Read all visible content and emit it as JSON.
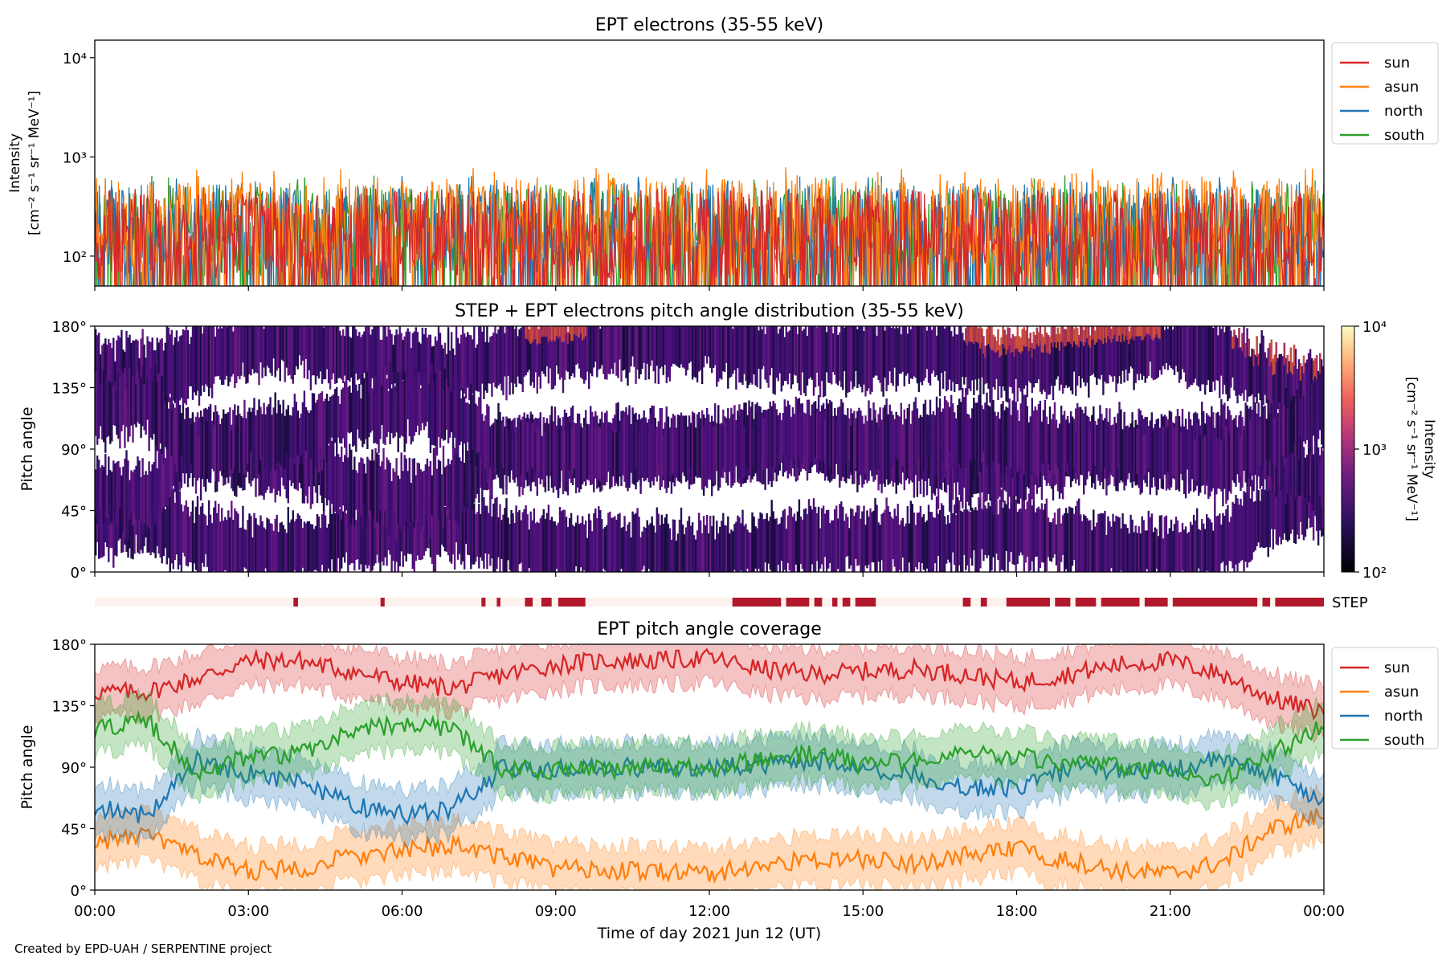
{
  "footer": {
    "credit": "Created by EPD-UAH / SERPENTINE project"
  },
  "xaxis": {
    "label": "Time of day 2021 Jun 12 (UT)",
    "ticks": [
      {
        "hour": 0,
        "label": "00:00"
      },
      {
        "hour": 3,
        "label": "03:00"
      },
      {
        "hour": 6,
        "label": "06:00"
      },
      {
        "hour": 9,
        "label": "09:00"
      },
      {
        "hour": 12,
        "label": "12:00"
      },
      {
        "hour": 15,
        "label": "15:00"
      },
      {
        "hour": 18,
        "label": "18:00"
      },
      {
        "hour": 21,
        "label": "21:00"
      },
      {
        "hour": 24,
        "label": "00:00"
      }
    ],
    "range_hours": [
      0,
      24
    ]
  },
  "chart_data": [
    {
      "type": "line",
      "title": "EPT electrons (35-55 keV)",
      "ylabel_line1": "Intensity",
      "ylabel_line2": "[cm⁻² s⁻¹ sr⁻¹ MeV⁻¹]",
      "yscale": "log",
      "ylim": [
        50,
        15000
      ],
      "yticks": [
        {
          "value": 100,
          "label": "10²"
        },
        {
          "value": 1000,
          "label": "10³"
        },
        {
          "value": 10000,
          "label": "10⁴"
        }
      ],
      "legend_position": "outside-right-top",
      "series": [
        {
          "name": "south",
          "color": "#2ca02c",
          "typical_value": 160,
          "max_value": 650
        },
        {
          "name": "north",
          "color": "#1f77b4",
          "typical_value": 170,
          "max_value": 650
        },
        {
          "name": "asun",
          "color": "#ff7f0e",
          "typical_value": 200,
          "max_value": 800
        },
        {
          "name": "sun",
          "color": "#d62728",
          "typical_value": 150,
          "max_value": 500
        }
      ],
      "legend_order": [
        "sun",
        "asun",
        "north",
        "south"
      ]
    },
    {
      "type": "heatmap",
      "title": "STEP + EPT electrons pitch angle distribution (35-55 keV)",
      "ylabel": "Pitch angle",
      "ylim": [
        0,
        180
      ],
      "yticks": [
        {
          "value": 0,
          "label": "0°"
        },
        {
          "value": 45,
          "label": "45°"
        },
        {
          "value": 90,
          "label": "90°"
        },
        {
          "value": 135,
          "label": "135°"
        },
        {
          "value": 180,
          "label": "180°"
        }
      ],
      "colorbar": {
        "label_line1": "Intensity",
        "label_line2": "[cm⁻² s⁻¹ sr⁻¹ MeV⁻¹]",
        "scale": "log",
        "range": [
          100,
          10000
        ],
        "ticks": [
          {
            "value": 100,
            "label": "10²"
          },
          {
            "value": 1000,
            "label": "10³"
          },
          {
            "value": 10000,
            "label": "10⁴"
          }
        ]
      }
    },
    {
      "type": "bar",
      "label": "STEP",
      "on_color": "#b2182b",
      "off_color": "#fdf2ee",
      "on_intervals_hours": [
        [
          3.88,
          3.97
        ],
        [
          5.58,
          5.66
        ],
        [
          7.55,
          7.63
        ],
        [
          7.85,
          7.92
        ],
        [
          8.4,
          8.55
        ],
        [
          8.72,
          8.92
        ],
        [
          9.05,
          9.58
        ],
        [
          12.45,
          13.4
        ],
        [
          13.5,
          13.95
        ],
        [
          14.05,
          14.2
        ],
        [
          14.4,
          14.5
        ],
        [
          14.6,
          14.75
        ],
        [
          14.85,
          15.25
        ],
        [
          17.3,
          17.42
        ],
        [
          16.95,
          17.1
        ],
        [
          17.8,
          18.65
        ],
        [
          18.75,
          19.05
        ],
        [
          19.15,
          19.55
        ],
        [
          19.65,
          20.4
        ],
        [
          20.5,
          20.95
        ],
        [
          21.05,
          22.7
        ],
        [
          22.8,
          22.95
        ],
        [
          23.05,
          24.0
        ]
      ]
    },
    {
      "type": "line",
      "title": "EPT pitch angle coverage",
      "ylabel": "Pitch angle",
      "ylim": [
        0,
        180
      ],
      "yticks": [
        {
          "value": 0,
          "label": "0°"
        },
        {
          "value": 45,
          "label": "45°"
        },
        {
          "value": 90,
          "label": "90°"
        },
        {
          "value": 135,
          "label": "135°"
        },
        {
          "value": 180,
          "label": "180°"
        }
      ],
      "legend_position": "outside-right-top",
      "series": [
        {
          "name": "sun",
          "color": "#d62728",
          "x_hours": [
            0,
            1,
            2,
            3,
            4,
            5,
            6,
            7,
            8,
            9,
            10,
            11,
            12,
            13,
            14,
            15,
            16,
            17,
            18,
            19,
            20,
            21,
            22,
            23,
            24
          ],
          "values": [
            145,
            145,
            155,
            168,
            168,
            160,
            152,
            148,
            158,
            165,
            168,
            168,
            170,
            162,
            158,
            160,
            162,
            158,
            152,
            158,
            165,
            168,
            158,
            140,
            130
          ]
        },
        {
          "name": "asun",
          "color": "#ff7f0e",
          "x_hours": [
            0,
            1,
            2,
            3,
            4,
            5,
            6,
            7,
            8,
            9,
            10,
            11,
            12,
            13,
            14,
            15,
            16,
            17,
            18,
            19,
            20,
            21,
            22,
            23,
            24
          ],
          "values": [
            35,
            40,
            25,
            14,
            16,
            25,
            28,
            34,
            24,
            16,
            14,
            14,
            12,
            18,
            22,
            22,
            20,
            25,
            30,
            22,
            14,
            12,
            20,
            45,
            55
          ]
        },
        {
          "name": "north",
          "color": "#1f77b4",
          "x_hours": [
            0,
            1,
            2,
            3,
            4,
            5,
            6,
            7,
            8,
            9,
            10,
            11,
            12,
            13,
            14,
            15,
            16,
            17,
            18,
            19,
            20,
            21,
            22,
            23,
            24
          ],
          "values": [
            60,
            55,
            95,
            85,
            80,
            62,
            55,
            60,
            90,
            88,
            90,
            90,
            90,
            92,
            95,
            90,
            85,
            75,
            75,
            88,
            88,
            88,
            95,
            85,
            65
          ]
        },
        {
          "name": "south",
          "color": "#2ca02c",
          "x_hours": [
            0,
            1,
            2,
            3,
            4,
            5,
            6,
            7,
            8,
            9,
            10,
            11,
            12,
            13,
            14,
            15,
            16,
            17,
            18,
            19,
            20,
            21,
            22,
            23,
            24
          ],
          "values": [
            118,
            125,
            85,
            98,
            100,
            115,
            122,
            118,
            88,
            88,
            88,
            90,
            88,
            95,
            100,
            92,
            95,
            102,
            98,
            92,
            90,
            88,
            80,
            100,
            120
          ]
        }
      ],
      "legend_order": [
        "sun",
        "asun",
        "north",
        "south"
      ]
    }
  ]
}
